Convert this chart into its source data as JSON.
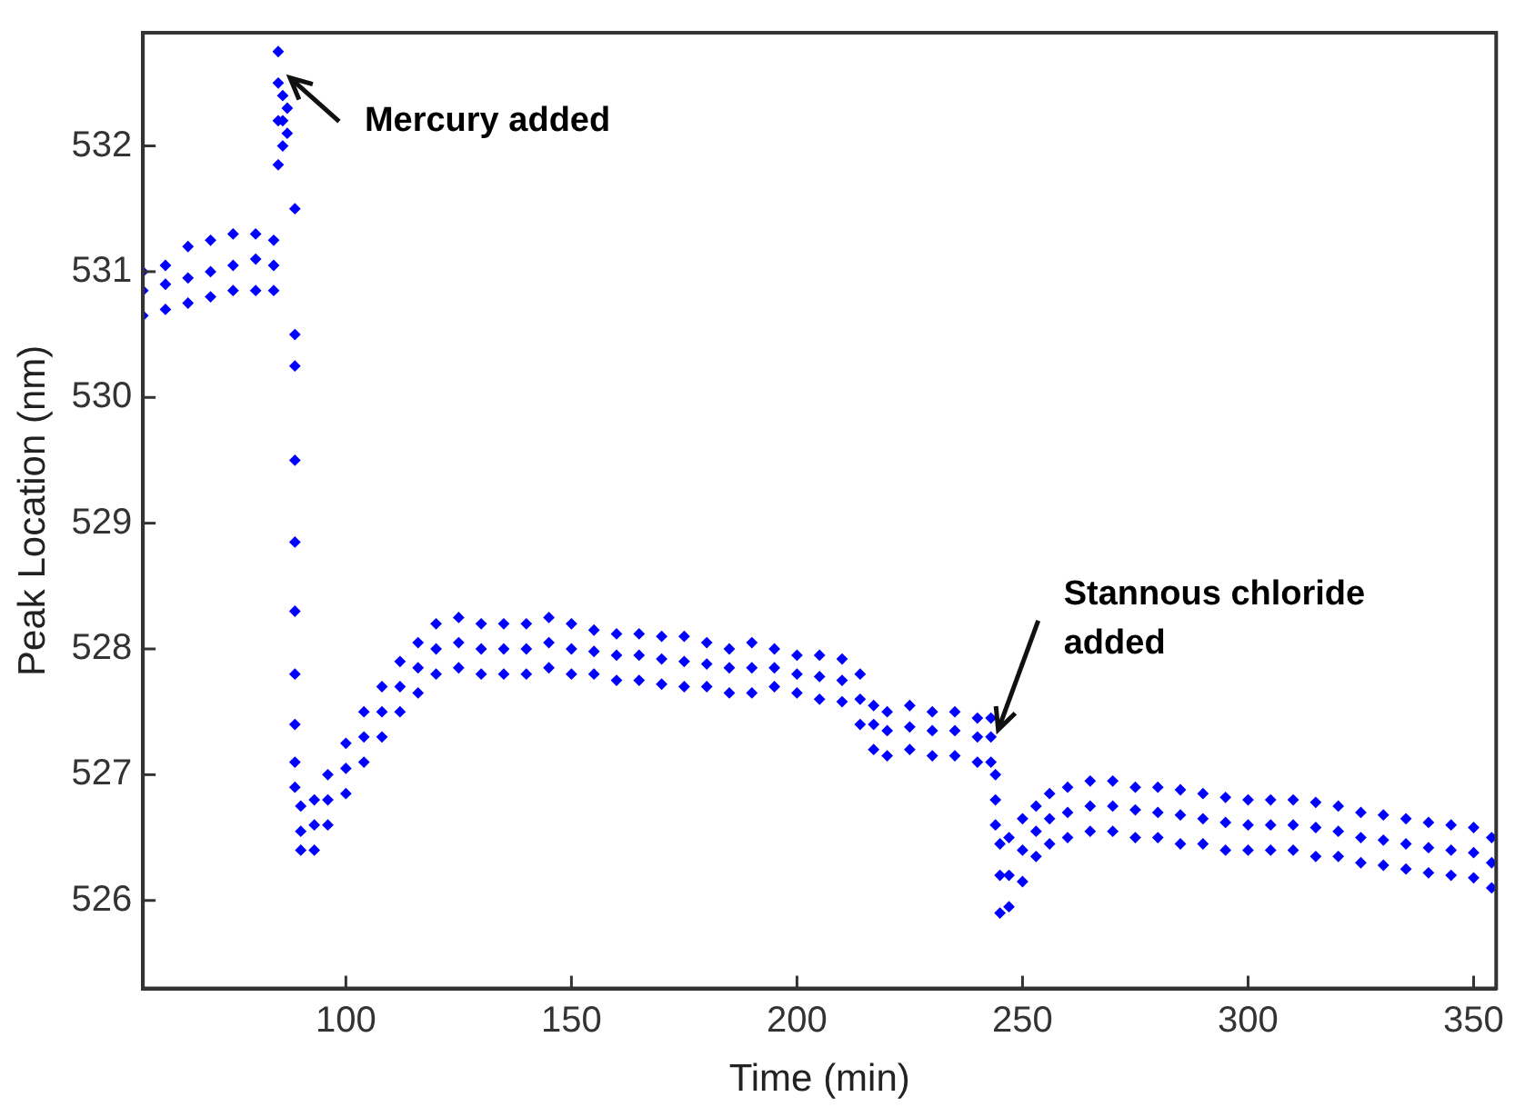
{
  "chart_data": {
    "type": "scatter",
    "xlabel": "Time (min)",
    "ylabel": "Peak Location (nm)",
    "xlim": [
      55,
      355
    ],
    "xticks": [
      100,
      150,
      200,
      250,
      300,
      350
    ],
    "ylim": [
      525.3,
      532.9
    ],
    "yticks": [
      526,
      527,
      528,
      529,
      530,
      531,
      532
    ],
    "grid": false,
    "legend": false,
    "marker": "diamond",
    "annotations": [
      {
        "text": "Mercury added",
        "x": 86,
        "y": 532.6
      },
      {
        "text": "Stannous chloride\nadded",
        "x": 243,
        "y": 527.3
      }
    ],
    "series": [
      {
        "color": "#0000ff",
        "x": [
          55,
          55,
          55,
          60,
          60,
          60,
          65,
          65,
          65,
          70,
          70,
          70,
          75,
          75,
          75,
          80,
          80,
          80,
          84,
          84,
          84,
          85,
          85,
          85,
          85,
          86,
          86,
          86,
          87,
          87,
          88.7,
          88.7,
          88.7,
          88.7,
          88.7,
          88.7,
          88.7,
          88.7,
          88.7,
          88.7,
          90,
          90,
          90,
          93,
          93,
          93,
          96,
          96,
          96,
          100,
          100,
          100,
          104,
          104,
          104,
          108,
          108,
          108,
          112,
          112,
          112,
          116,
          116,
          116,
          120,
          120,
          120,
          125,
          125,
          125,
          130,
          130,
          130,
          135,
          135,
          135,
          140,
          140,
          140,
          145,
          145,
          145,
          150,
          150,
          150,
          155,
          155,
          155,
          160,
          160,
          160,
          165,
          165,
          165,
          170,
          170,
          170,
          175,
          175,
          175,
          180,
          180,
          180,
          185,
          185,
          185,
          190,
          190,
          190,
          195,
          195,
          195,
          200,
          200,
          200,
          205,
          205,
          205,
          210,
          210,
          210,
          214,
          214,
          214,
          217,
          217,
          217,
          220,
          220,
          220,
          225,
          225,
          225,
          230,
          230,
          230,
          235,
          235,
          235,
          240,
          240,
          240,
          243,
          243,
          243,
          244,
          244,
          244,
          245,
          245,
          245,
          247,
          247,
          247,
          250,
          250,
          250,
          253,
          253,
          253,
          256,
          256,
          256,
          260,
          260,
          260,
          265,
          265,
          265,
          270,
          270,
          270,
          275,
          275,
          275,
          280,
          280,
          280,
          285,
          285,
          285,
          290,
          290,
          290,
          295,
          295,
          295,
          300,
          300,
          300,
          305,
          305,
          305,
          310,
          310,
          310,
          315,
          315,
          315,
          320,
          320,
          320,
          325,
          325,
          325,
          330,
          330,
          330,
          335,
          335,
          335,
          340,
          340,
          340,
          345,
          345,
          345,
          350,
          350,
          350,
          354,
          354,
          354
        ],
        "values": [
          531.0,
          530.85,
          530.65,
          531.05,
          530.9,
          530.7,
          531.2,
          530.95,
          530.75,
          531.25,
          531.0,
          530.8,
          531.3,
          531.05,
          530.85,
          531.3,
          531.1,
          530.85,
          531.25,
          531.05,
          530.85,
          532.75,
          532.5,
          532.2,
          531.85,
          532.4,
          532.2,
          532.0,
          532.3,
          532.1,
          531.5,
          530.5,
          530.25,
          529.5,
          528.85,
          528.3,
          527.8,
          527.4,
          527.1,
          526.9,
          526.75,
          526.55,
          526.4,
          526.8,
          526.6,
          526.4,
          527.0,
          526.8,
          526.6,
          527.25,
          527.05,
          526.85,
          527.5,
          527.3,
          527.1,
          527.7,
          527.5,
          527.3,
          527.9,
          527.7,
          527.5,
          528.05,
          527.85,
          527.65,
          528.2,
          528.0,
          527.8,
          528.25,
          528.05,
          527.85,
          528.2,
          528.0,
          527.8,
          528.2,
          528.0,
          527.8,
          528.2,
          528.0,
          527.8,
          528.25,
          528.05,
          527.85,
          528.2,
          528.0,
          527.8,
          528.15,
          527.98,
          527.8,
          528.12,
          527.95,
          527.75,
          528.12,
          527.95,
          527.75,
          528.1,
          527.92,
          527.72,
          528.1,
          527.9,
          527.7,
          528.05,
          527.88,
          527.7,
          528.0,
          527.85,
          527.65,
          528.05,
          527.85,
          527.65,
          528.0,
          527.85,
          527.7,
          527.95,
          527.8,
          527.65,
          527.95,
          527.78,
          527.6,
          527.92,
          527.75,
          527.58,
          527.8,
          527.6,
          527.4,
          527.55,
          527.4,
          527.2,
          527.5,
          527.35,
          527.15,
          527.55,
          527.38,
          527.2,
          527.5,
          527.35,
          527.15,
          527.5,
          527.35,
          527.15,
          527.45,
          527.3,
          527.1,
          527.45,
          527.3,
          527.1,
          527.0,
          526.8,
          526.6,
          526.45,
          526.2,
          525.9,
          526.5,
          526.2,
          525.95,
          526.65,
          526.4,
          526.15,
          526.75,
          526.55,
          526.35,
          526.85,
          526.65,
          526.45,
          526.9,
          526.7,
          526.5,
          526.95,
          526.75,
          526.55,
          526.95,
          526.75,
          526.55,
          526.9,
          526.72,
          526.5,
          526.9,
          526.7,
          526.5,
          526.88,
          526.68,
          526.45,
          526.85,
          526.65,
          526.45,
          526.82,
          526.62,
          526.4,
          526.8,
          526.6,
          526.4,
          526.8,
          526.6,
          526.4,
          526.8,
          526.6,
          526.4,
          526.78,
          526.58,
          526.35,
          526.75,
          526.55,
          526.35,
          526.7,
          526.5,
          526.3,
          526.68,
          526.48,
          526.28,
          526.65,
          526.45,
          526.25,
          526.62,
          526.42,
          526.22,
          526.6,
          526.4,
          526.2,
          526.58,
          526.38,
          526.18,
          526.5,
          526.3,
          526.1
        ]
      }
    ]
  }
}
